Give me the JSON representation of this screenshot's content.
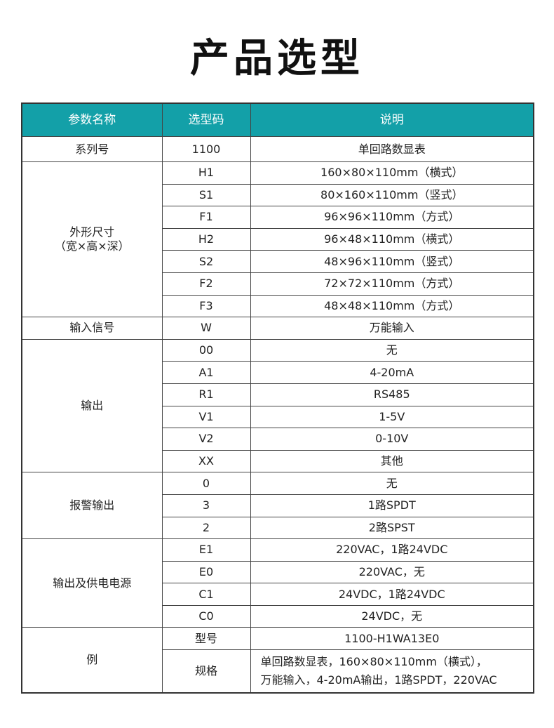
{
  "title": "产品选型",
  "header_color": "#13a0a8",
  "headers": [
    "参数名称",
    "选型码",
    "说明"
  ],
  "series": {
    "param": "系列号",
    "code": "1100",
    "desc": "单回路数显表"
  },
  "shape": {
    "param_line1": "外形尺寸",
    "param_line2": "（宽×高×深）",
    "rows": [
      {
        "code": "H1",
        "desc": "160×80×110mm（横式）"
      },
      {
        "code": "S1",
        "desc": "80×160×110mm（竖式）"
      },
      {
        "code": "F1",
        "desc": "96×96×110mm（方式）"
      },
      {
        "code": "H2",
        "desc": "96×48×110mm（横式）"
      },
      {
        "code": "S2",
        "desc": "48×96×110mm（竖式）"
      },
      {
        "code": "F2",
        "desc": "72×72×110mm（方式）"
      },
      {
        "code": "F3",
        "desc": "48×48×110mm（方式）"
      }
    ]
  },
  "input": {
    "param": "输入信号",
    "code": "W",
    "desc": "万能输入"
  },
  "output": {
    "param": "输出",
    "rows": [
      {
        "code": "00",
        "desc": "无"
      },
      {
        "code": "A1",
        "desc": "4-20mA"
      },
      {
        "code": "R1",
        "desc": "RS485"
      },
      {
        "code": "V1",
        "desc": "1-5V"
      },
      {
        "code": "V2",
        "desc": "0-10V"
      },
      {
        "code": "XX",
        "desc": "其他"
      }
    ]
  },
  "alarm": {
    "param": "报警输出",
    "rows": [
      {
        "code": "0",
        "desc": "无"
      },
      {
        "code": "3",
        "desc": "1路SPDT"
      },
      {
        "code": "2",
        "desc": "2路SPST"
      }
    ]
  },
  "power": {
    "param": "输出及供电电源",
    "rows": [
      {
        "code": "E1",
        "desc": "220VAC，1路24VDC"
      },
      {
        "code": "E0",
        "desc": "220VAC，无"
      },
      {
        "code": "C1",
        "desc": "24VDC，1路24VDC"
      },
      {
        "code": "C0",
        "desc": "24VDC，无"
      }
    ]
  },
  "example": {
    "param": "例",
    "model_label": "型号",
    "model": "1100-H1WA13E0",
    "spec_label": "规格",
    "spec_line1": "单回路数显表，160×80×110mm（横式），",
    "spec_line2": "万能输入，4-20mA输出，1路SPDT，220VAC"
  }
}
